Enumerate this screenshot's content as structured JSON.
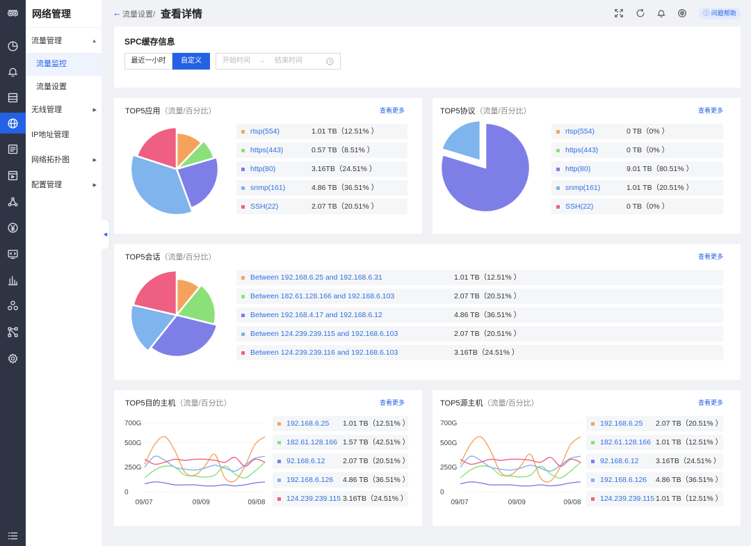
{
  "app": {
    "title": "网络管理"
  },
  "rail": {
    "icons": [
      "app-logo-icon",
      "dashboard-icon",
      "alarm-bell-icon",
      "server-icon",
      "network-globe-icon",
      "log-list-icon",
      "media-icon",
      "topology-icon",
      "billing-icon",
      "terminal-icon",
      "bar-chart-icon",
      "cluster-icon",
      "flow-icon",
      "settings-gear-icon",
      "menu-list-icon"
    ]
  },
  "sidebar": {
    "items": [
      {
        "label": "流量管理",
        "type": "group",
        "expanded": true
      },
      {
        "label": "流量监控",
        "type": "sub",
        "active": true
      },
      {
        "label": "流量设置",
        "type": "sub"
      },
      {
        "label": "无线管理",
        "type": "group"
      },
      {
        "label": "IP地址管理",
        "type": "item"
      },
      {
        "label": "网络拓扑图",
        "type": "group"
      },
      {
        "label": "配置管理",
        "type": "group"
      }
    ]
  },
  "header": {
    "breadcrumb": "流量设置/",
    "title": "查看详情",
    "help": "问题帮助",
    "icons": [
      "fullscreen-icon",
      "refresh-icon",
      "notification-bell-icon",
      "language-icon"
    ]
  },
  "spc": {
    "title": "SPC缓存信息",
    "range_buttons": [
      "最近一小时",
      "自定义"
    ],
    "active_button": "自定义",
    "start_placeholder": "开始时间",
    "arrow": "→",
    "end_placeholder": "结束时间"
  },
  "colors": {
    "orange": "#f5a35c",
    "green": "#8be07a",
    "purple": "#7e7fe6",
    "blue": "#7fb4ec",
    "red": "#ef5f82",
    "accent": "#2462e5"
  },
  "cards": {
    "app": {
      "title": "TOP5应用",
      "subtitle": "（流量/百分比）",
      "more": "查看更多",
      "rows": [
        {
          "name": "rtsp(554)",
          "value": "1.01 TB（12.51% ）",
          "color": "#f5a35c"
        },
        {
          "name": "https(443)",
          "value": "0.57 TB（8.51% ）",
          "color": "#8be07a"
        },
        {
          "name": "http(80)",
          "value": "3.16TB（24.51% ）",
          "color": "#7e7fe6"
        },
        {
          "name": "snmp(161)",
          "value": "4.86 TB（36.51% ）",
          "color": "#7fb4ec"
        },
        {
          "name": "SSH(22)",
          "value": "2.07 TB（20.51% ）",
          "color": "#ef5f82"
        }
      ]
    },
    "protocol": {
      "title": "TOP5协议",
      "subtitle": "（流量/百分比）",
      "more": "查看更多",
      "rows": [
        {
          "name": "rtsp(554)",
          "value": "0 TB（0% ）",
          "color": "#f5a35c"
        },
        {
          "name": "https(443)",
          "value": "0 TB（0% ）",
          "color": "#8be07a"
        },
        {
          "name": "http(80)",
          "value": "9.01 TB（80.51% ）",
          "color": "#7e7fe6"
        },
        {
          "name": "snmp(161)",
          "value": "1.01 TB（20.51% ）",
          "color": "#7fb4ec"
        },
        {
          "name": "SSH(22)",
          "value": "0 TB（0% ）",
          "color": "#ef5f82"
        }
      ]
    },
    "session": {
      "title": "TOP5会话",
      "subtitle": "（流量/百分比）",
      "more": "查看更多",
      "rows": [
        {
          "name": "Between 192.168.6.25 and 192.168.6.31",
          "value": "1.01 TB（12.51% ）",
          "color": "#f5a35c"
        },
        {
          "name": "Between 182.61.128.166 and 192.168.6.103",
          "value": "2.07 TB（20.51% ）",
          "color": "#8be07a"
        },
        {
          "name": "Between 192.168.4.17 and 192.168.6.12",
          "value": "4.86 TB（36.51% ）",
          "color": "#7e7fe6"
        },
        {
          "name": "Between 124.239.239.115 and 192.168.6.103",
          "value": "2.07 TB（20.51% ）",
          "color": "#7fb4ec"
        },
        {
          "name": "Between 124.239.239.116 and 192.168.6.103",
          "value": "3.16TB（24.51% ）",
          "color": "#ef5f82"
        }
      ]
    },
    "dest": {
      "title": "TOP5目的主机",
      "subtitle": "（流量/百分比）",
      "more": "查看更多",
      "rows": [
        {
          "name": "192.168.6.25",
          "value": "1.01 TB（12.51% ）",
          "color": "#f5a35c"
        },
        {
          "name": "182.61.128.166",
          "value": "1.57 TB（42.51% ）",
          "color": "#8be07a"
        },
        {
          "name": "92.168.6.12",
          "value": "2.07 TB（20.51% ）",
          "color": "#7e7fe6"
        },
        {
          "name": "192.168.6.126",
          "value": "4.86 TB（36.51% ）",
          "color": "#7fb4ec"
        },
        {
          "name": "124.239.239.115",
          "value": "3.16TB（24.51% ）",
          "color": "#ef5f82"
        }
      ]
    },
    "source": {
      "title": "TOP5源主机",
      "subtitle": "（流量/百分比）",
      "more": "查看更多",
      "rows": [
        {
          "name": "192.168.6.25",
          "value": "2.07 TB（20.51% ）",
          "color": "#f5a35c"
        },
        {
          "name": "182.61.128.166",
          "value": "1.01 TB（12.51% ）",
          "color": "#8be07a"
        },
        {
          "name": "92.168.6.12",
          "value": "3.16TB（24.51% ）",
          "color": "#7e7fe6"
        },
        {
          "name": "192.168.6.126",
          "value": "4.86 TB（36.51% ）",
          "color": "#7fb4ec"
        },
        {
          "name": "124.239.239.115",
          "value": "1.01 TB（12.51% ）",
          "color": "#ef5f82"
        }
      ]
    }
  },
  "chart_data": [
    {
      "type": "pie",
      "id": "app",
      "labels": [
        "rtsp(554)",
        "https(443)",
        "http(80)",
        "snmp(161)",
        "SSH(22)"
      ],
      "values": [
        12.51,
        8.51,
        24.51,
        36.51,
        20.51
      ]
    },
    {
      "type": "pie",
      "id": "protocol",
      "labels": [
        "rtsp(554)",
        "https(443)",
        "http(80)",
        "snmp(161)",
        "SSH(22)"
      ],
      "values": [
        0,
        0,
        80.51,
        20.51,
        0
      ]
    },
    {
      "type": "pie",
      "id": "session",
      "labels": [
        "192.168.6.25-192.168.6.31",
        "182.61.128.166-192.168.6.103",
        "192.168.4.17-192.168.6.12",
        "124.239.239.115-192.168.6.103",
        "124.239.239.116-192.168.6.103"
      ],
      "values": [
        12.51,
        20.51,
        36.51,
        20.51,
        24.51
      ]
    },
    {
      "type": "line",
      "id": "dest",
      "yticks": [
        "700G",
        "500G",
        "250G",
        "0"
      ],
      "ylim": [
        0,
        700
      ],
      "xticks": [
        "09/07",
        "09/09",
        "09/08"
      ],
      "x": [
        0,
        1,
        2,
        3,
        4,
        5,
        6,
        7,
        8,
        9,
        10,
        11,
        12
      ],
      "series": [
        {
          "name": "192.168.6.25",
          "color": "#f5a35c",
          "values": [
            280,
            480,
            560,
            420,
            200,
            170,
            260,
            380,
            140,
            110,
            260,
            480,
            560
          ]
        },
        {
          "name": "182.61.128.166",
          "color": "#8be07a",
          "values": [
            140,
            220,
            260,
            250,
            170,
            160,
            150,
            170,
            260,
            180,
            140,
            210,
            300
          ]
        },
        {
          "name": "92.168.6.12",
          "color": "#7e7fe6",
          "values": [
            80,
            100,
            90,
            70,
            70,
            70,
            60,
            60,
            70,
            60,
            70,
            90,
            100
          ]
        },
        {
          "name": "192.168.6.126",
          "color": "#7fb4ec",
          "values": [
            250,
            360,
            320,
            250,
            230,
            220,
            240,
            270,
            240,
            210,
            270,
            340,
            360
          ]
        },
        {
          "name": "124.239.239.115",
          "color": "#ef5f82",
          "values": [
            330,
            280,
            300,
            330,
            320,
            330,
            330,
            320,
            300,
            350,
            260,
            330,
            300
          ]
        }
      ]
    },
    {
      "type": "line",
      "id": "source",
      "yticks": [
        "700G",
        "500G",
        "250G",
        "0"
      ],
      "ylim": [
        0,
        700
      ],
      "xticks": [
        "09/07",
        "09/09",
        "09/08"
      ],
      "x": [
        0,
        1,
        2,
        3,
        4,
        5,
        6,
        7,
        8,
        9,
        10,
        11,
        12
      ],
      "series": [
        {
          "name": "192.168.6.25",
          "color": "#f5a35c",
          "values": [
            280,
            480,
            560,
            420,
            200,
            170,
            260,
            380,
            140,
            110,
            260,
            480,
            560
          ]
        },
        {
          "name": "182.61.128.166",
          "color": "#8be07a",
          "values": [
            140,
            220,
            260,
            250,
            170,
            160,
            150,
            170,
            260,
            180,
            140,
            210,
            300
          ]
        },
        {
          "name": "92.168.6.12",
          "color": "#7e7fe6",
          "values": [
            80,
            100,
            90,
            70,
            70,
            70,
            60,
            60,
            70,
            60,
            70,
            90,
            100
          ]
        },
        {
          "name": "192.168.6.126",
          "color": "#7fb4ec",
          "values": [
            250,
            360,
            320,
            250,
            230,
            220,
            240,
            270,
            240,
            210,
            270,
            340,
            360
          ]
        },
        {
          "name": "124.239.239.115",
          "color": "#ef5f82",
          "values": [
            330,
            280,
            300,
            330,
            320,
            330,
            330,
            320,
            300,
            350,
            260,
            330,
            300
          ]
        }
      ]
    }
  ]
}
